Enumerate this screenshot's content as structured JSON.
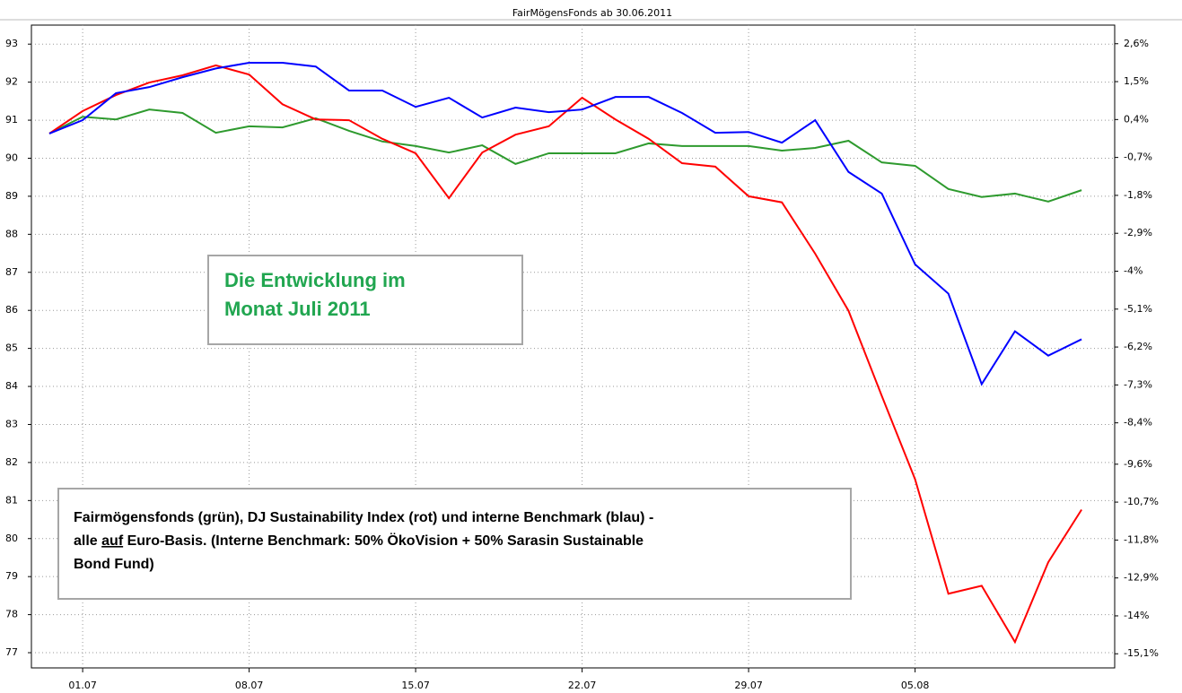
{
  "chart_data": {
    "type": "line",
    "title": "FairMögensFonds ab 30.06.2011",
    "categories": [
      null,
      "01.07",
      null,
      null,
      null,
      null,
      "08.07",
      null,
      null,
      null,
      null,
      "15.07",
      null,
      null,
      null,
      null,
      "22.07",
      null,
      null,
      null,
      null,
      "29.07",
      null,
      null,
      null,
      null,
      "05.08",
      null,
      null,
      null,
      null,
      null
    ],
    "series": [
      {
        "color": "#2e9a2e",
        "values": [
          90.65,
          91.09,
          91.02,
          91.28,
          91.19,
          90.67,
          90.84,
          90.81,
          91.05,
          90.72,
          90.44,
          90.32,
          90.15,
          90.34,
          89.85,
          90.13,
          90.13,
          90.13,
          90.39,
          90.32,
          90.32,
          90.32,
          90.2,
          90.27,
          90.46,
          89.89,
          89.8,
          89.19,
          88.98,
          89.07,
          88.86,
          89.16
        ]
      },
      {
        "color": "#ff0000",
        "values": [
          90.65,
          91.24,
          91.66,
          91.99,
          92.18,
          92.44,
          92.2,
          91.42,
          91.02,
          91.0,
          90.51,
          90.13,
          88.95,
          90.15,
          90.62,
          90.84,
          91.59,
          91.02,
          90.51,
          89.87,
          89.78,
          89.0,
          88.84,
          87.49,
          85.99,
          83.75,
          81.56,
          78.55,
          78.76,
          77.28,
          79.38,
          80.76
        ]
      },
      {
        "color": "#0000ff",
        "values": [
          90.65,
          91.0,
          91.71,
          91.87,
          92.13,
          92.36,
          92.51,
          92.51,
          92.41,
          91.78,
          91.78,
          91.35,
          91.59,
          91.07,
          91.33,
          91.21,
          91.28,
          91.61,
          91.61,
          91.19,
          90.67,
          90.69,
          90.41,
          91.0,
          89.64,
          89.07,
          87.21,
          86.44,
          84.06,
          85.45,
          84.81,
          85.24
        ]
      }
    ],
    "ylim": [
      76.6,
      93.5
    ],
    "yticks": [
      77,
      78,
      79,
      80,
      81,
      82,
      83,
      84,
      85,
      86,
      87,
      88,
      89,
      90,
      91,
      92,
      93
    ],
    "y2lim": [
      -15.51,
      3.14
    ],
    "y2ticks": [
      {
        "value": 2.6,
        "label": "2,6%"
      },
      {
        "value": 1.5,
        "label": "1,5%"
      },
      {
        "value": 0.4,
        "label": "0,4%"
      },
      {
        "value": -0.7,
        "label": "-0,7%"
      },
      {
        "value": -1.8,
        "label": "-1,8%"
      },
      {
        "value": -2.9,
        "label": "-2,9%"
      },
      {
        "value": -4,
        "label": "-4%"
      },
      {
        "value": -5.1,
        "label": "-5,1%"
      },
      {
        "value": -6.2,
        "label": "-6,2%"
      },
      {
        "value": -7.3,
        "label": "-7,3%"
      },
      {
        "value": -8.4,
        "label": "-8,4%"
      },
      {
        "value": -9.6,
        "label": "-9,6%"
      },
      {
        "value": -10.7,
        "label": "-10,7%"
      },
      {
        "value": -11.8,
        "label": "-11,8%"
      },
      {
        "value": -12.9,
        "label": "-12,9%"
      },
      {
        "value": -14,
        "label": "-14%"
      },
      {
        "value": -15.1,
        "label": "-15,1%"
      }
    ],
    "grid": true,
    "annotations": [
      {
        "color": "#21a650",
        "lines": [
          [
            "Die Entwicklung im"
          ],
          [
            "Monat Juli 2011"
          ]
        ]
      },
      {
        "color": "#000000",
        "lines": [
          [
            "Fairmögensfonds (grün),  DJ Sustainability Index (rot) und interne Benchmark (blau) -"
          ],
          [
            "alle ",
            "auf",
            " Euro-Basis. (Interne Benchmark: 50% ÖkoVision + 50% Sarasin Sustainable"
          ],
          [
            "Bond Fund)"
          ]
        ],
        "underline": [
          1,
          1
        ]
      }
    ]
  }
}
